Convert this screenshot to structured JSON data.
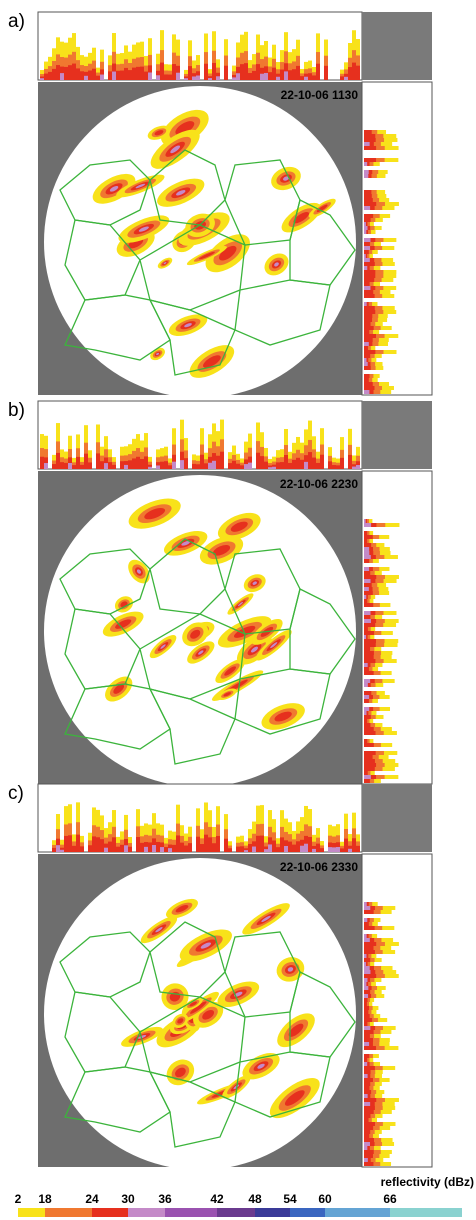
{
  "panels": [
    {
      "label": "a)",
      "timestamp": "22-10-06 1130"
    },
    {
      "label": "b)",
      "timestamp": "22-10-06 2230"
    },
    {
      "label": "c)",
      "timestamp": "22-10-06 2330"
    }
  ],
  "legend": {
    "title": "reflectivity (dBz)",
    "ticks": [
      2,
      18,
      24,
      30,
      36,
      42,
      48,
      54,
      60,
      66
    ],
    "colors": [
      "#f8e21a",
      "#f07830",
      "#e6301e",
      "#c48ac8",
      "#9a52b0",
      "#6a3a8e",
      "#3a3a98",
      "#3a66c0",
      "#64a4d4",
      "#8ad2d0"
    ]
  }
}
